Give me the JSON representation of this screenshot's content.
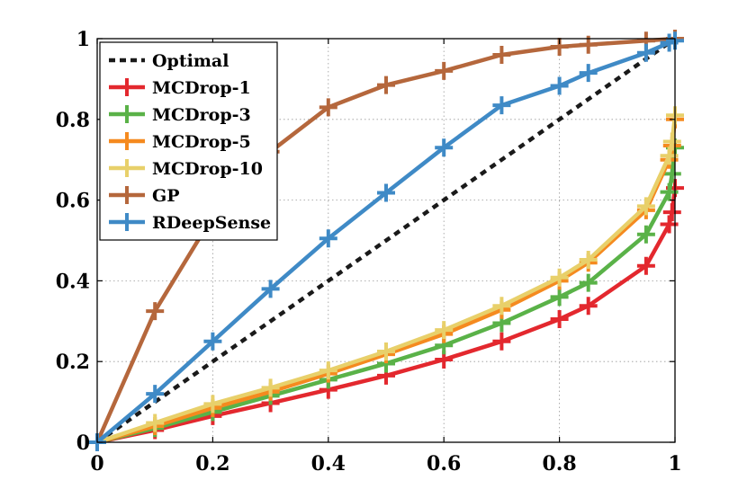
{
  "chart_data": {
    "type": "line",
    "title": "",
    "xlabel": "",
    "ylabel": "",
    "xlim": [
      0,
      1
    ],
    "ylim": [
      0,
      1
    ],
    "xticks": [
      "0",
      "0.2",
      "0.4",
      "0.6",
      "0.8",
      "1"
    ],
    "yticks": [
      "0",
      "0.2",
      "0.4",
      "0.6",
      "0.8",
      "1"
    ],
    "grid": true,
    "legend_position": "top-left",
    "series": [
      {
        "name": "Optimal",
        "color": "#1a1a1a",
        "style": "dashed",
        "marker": "none",
        "x": [
          0,
          1
        ],
        "y": [
          0,
          1
        ]
      },
      {
        "name": "MCDrop-1",
        "color": "#e3282e",
        "style": "solid",
        "marker": "plus",
        "x": [
          0,
          0.1,
          0.2,
          0.3,
          0.4,
          0.5,
          0.6,
          0.7,
          0.8,
          0.85,
          0.95,
          0.99,
          0.995,
          1.0
        ],
        "y": [
          0,
          0.03,
          0.065,
          0.097,
          0.13,
          0.165,
          0.205,
          0.25,
          0.305,
          0.338,
          0.437,
          0.54,
          0.57,
          0.63
        ]
      },
      {
        "name": "MCDrop-3",
        "color": "#5ab248",
        "style": "solid",
        "marker": "plus",
        "x": [
          0,
          0.1,
          0.2,
          0.3,
          0.4,
          0.5,
          0.6,
          0.7,
          0.8,
          0.85,
          0.95,
          0.99,
          0.995,
          1.0
        ],
        "y": [
          0,
          0.035,
          0.075,
          0.115,
          0.155,
          0.195,
          0.24,
          0.295,
          0.36,
          0.395,
          0.515,
          0.62,
          0.665,
          0.73
        ]
      },
      {
        "name": "MCDrop-5",
        "color": "#f58a1f",
        "style": "solid",
        "marker": "plus",
        "x": [
          0,
          0.1,
          0.2,
          0.3,
          0.4,
          0.5,
          0.6,
          0.7,
          0.8,
          0.85,
          0.95,
          0.99,
          0.995,
          1.0
        ],
        "y": [
          0,
          0.04,
          0.085,
          0.125,
          0.17,
          0.218,
          0.268,
          0.328,
          0.4,
          0.445,
          0.575,
          0.7,
          0.735,
          0.8
        ]
      },
      {
        "name": "MCDrop-10",
        "color": "#e8d06a",
        "style": "solid",
        "marker": "plus",
        "x": [
          0,
          0.1,
          0.2,
          0.3,
          0.4,
          0.5,
          0.6,
          0.7,
          0.8,
          0.85,
          0.95,
          0.99,
          0.995,
          1.0
        ],
        "y": [
          0,
          0.048,
          0.095,
          0.135,
          0.178,
          0.225,
          0.278,
          0.338,
          0.408,
          0.452,
          0.585,
          0.71,
          0.745,
          0.81
        ]
      },
      {
        "name": "GP",
        "color": "#b5673c",
        "style": "solid",
        "marker": "plus",
        "x": [
          0,
          0.1,
          0.2,
          0.3,
          0.4,
          0.5,
          0.6,
          0.7,
          0.8,
          0.85,
          0.95,
          1.0
        ],
        "y": [
          0,
          0.325,
          0.56,
          0.72,
          0.83,
          0.885,
          0.92,
          0.96,
          0.98,
          0.985,
          0.995,
          1.0
        ]
      },
      {
        "name": "RDeepSense",
        "color": "#3f8ac6",
        "style": "solid",
        "marker": "plus",
        "x": [
          0,
          0.1,
          0.2,
          0.3,
          0.4,
          0.5,
          0.6,
          0.7,
          0.8,
          0.85,
          0.95,
          0.99,
          1.0
        ],
        "y": [
          0,
          0.12,
          0.25,
          0.38,
          0.505,
          0.618,
          0.73,
          0.835,
          0.883,
          0.915,
          0.965,
          0.99,
          0.995
        ]
      }
    ]
  }
}
